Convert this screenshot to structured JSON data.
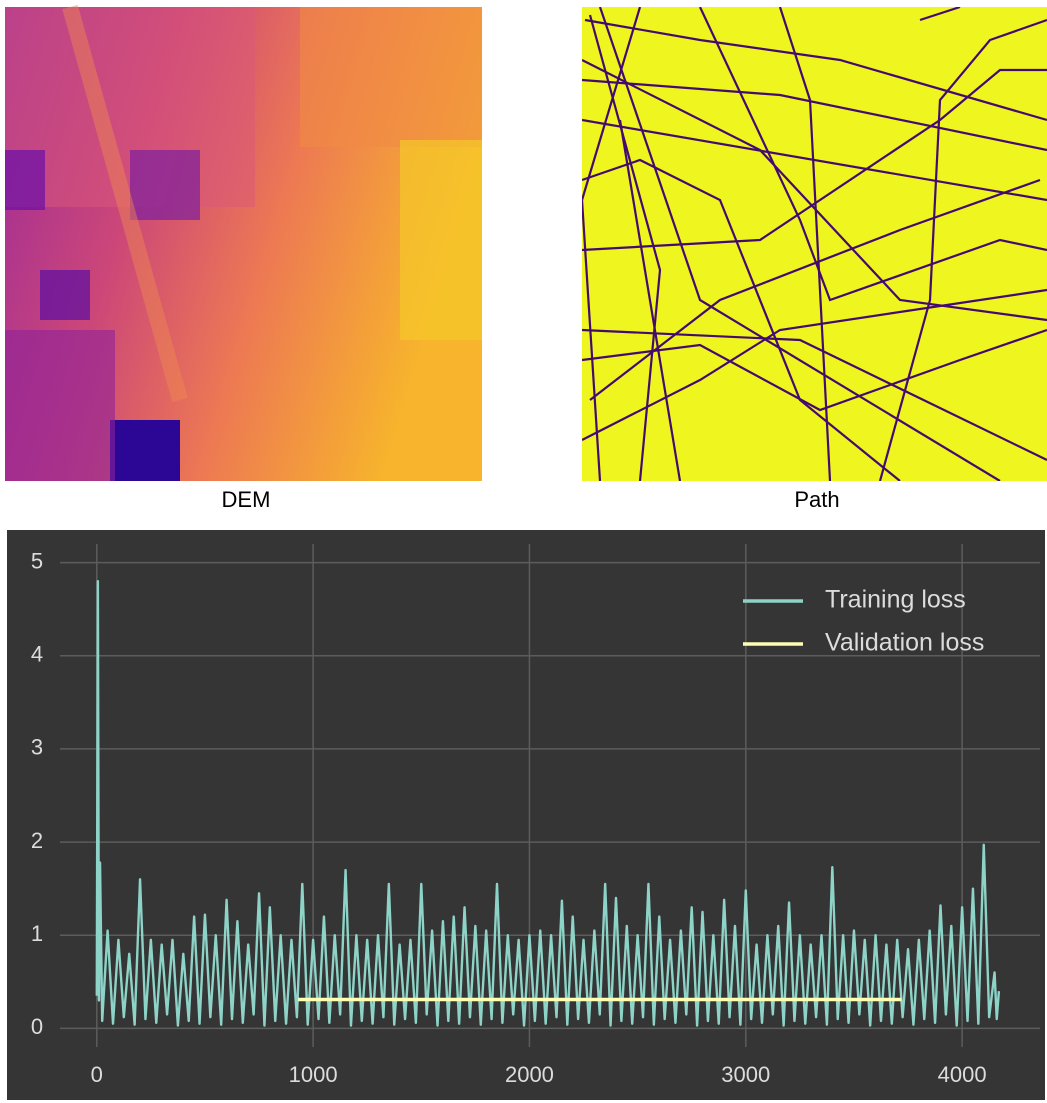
{
  "images": [
    {
      "caption": "DEM"
    },
    {
      "caption": "Path"
    }
  ],
  "chart_data": {
    "type": "line",
    "series": [
      {
        "name": "Training loss",
        "color": "#8dd3c7",
        "x": [
          0,
          5,
          10,
          15,
          25,
          50,
          75,
          100,
          125,
          150,
          175,
          200,
          225,
          250,
          275,
          300,
          325,
          350,
          375,
          400,
          425,
          450,
          475,
          500,
          525,
          550,
          575,
          600,
          625,
          650,
          675,
          700,
          725,
          750,
          775,
          800,
          825,
          850,
          875,
          900,
          925,
          950,
          975,
          1000,
          1025,
          1050,
          1075,
          1100,
          1125,
          1150,
          1175,
          1200,
          1225,
          1250,
          1275,
          1300,
          1325,
          1350,
          1375,
          1400,
          1425,
          1450,
          1475,
          1500,
          1525,
          1550,
          1575,
          1600,
          1625,
          1650,
          1675,
          1700,
          1725,
          1750,
          1775,
          1800,
          1825,
          1850,
          1875,
          1900,
          1925,
          1950,
          1975,
          2000,
          2025,
          2050,
          2075,
          2100,
          2125,
          2150,
          2175,
          2200,
          2225,
          2250,
          2275,
          2300,
          2325,
          2350,
          2375,
          2400,
          2425,
          2450,
          2475,
          2500,
          2525,
          2550,
          2575,
          2600,
          2625,
          2650,
          2675,
          2700,
          2725,
          2750,
          2775,
          2800,
          2825,
          2850,
          2875,
          2900,
          2925,
          2950,
          2975,
          3000,
          3025,
          3050,
          3075,
          3100,
          3125,
          3150,
          3175,
          3200,
          3225,
          3250,
          3275,
          3300,
          3325,
          3350,
          3375,
          3400,
          3425,
          3450,
          3475,
          3500,
          3525,
          3550,
          3575,
          3600,
          3625,
          3650,
          3675,
          3700,
          3725,
          3750,
          3775,
          3800,
          3825,
          3850,
          3875,
          3900,
          3925,
          3950,
          3975,
          4000,
          4025,
          4050,
          4075,
          4100,
          4125,
          4150,
          4160,
          4170
        ],
        "values": [
          0.35,
          4.8,
          0.3,
          1.78,
          0.08,
          1.05,
          0.05,
          0.95,
          0.12,
          0.8,
          0.04,
          1.6,
          0.1,
          0.95,
          0.06,
          0.9,
          0.15,
          0.95,
          0.03,
          0.8,
          0.08,
          1.2,
          0.05,
          1.22,
          0.12,
          1.0,
          0.04,
          1.38,
          0.1,
          1.15,
          0.06,
          0.9,
          0.15,
          1.45,
          0.03,
          1.3,
          0.08,
          1.0,
          0.05,
          0.95,
          0.12,
          1.55,
          0.04,
          0.95,
          0.1,
          1.2,
          0.06,
          1.0,
          0.15,
          1.7,
          0.03,
          1.0,
          0.08,
          0.95,
          0.05,
          1.0,
          0.12,
          1.55,
          0.04,
          0.9,
          0.1,
          0.95,
          0.06,
          1.55,
          0.15,
          1.05,
          0.03,
          1.15,
          0.08,
          1.2,
          0.05,
          1.3,
          0.12,
          1.1,
          0.04,
          1.05,
          0.1,
          1.55,
          0.06,
          1.0,
          0.15,
          0.95,
          0.03,
          1.0,
          0.08,
          1.05,
          0.05,
          1.0,
          0.12,
          1.37,
          0.04,
          1.2,
          0.1,
          0.95,
          0.06,
          1.05,
          0.15,
          1.55,
          0.03,
          1.4,
          0.08,
          1.1,
          0.05,
          1.0,
          0.12,
          1.55,
          0.04,
          1.2,
          0.1,
          0.95,
          0.06,
          1.05,
          0.15,
          1.3,
          0.03,
          1.25,
          0.08,
          1.0,
          0.05,
          1.38,
          0.12,
          1.1,
          0.04,
          1.48,
          0.1,
          0.9,
          0.06,
          1.0,
          0.15,
          1.1,
          0.03,
          1.35,
          0.08,
          1.0,
          0.05,
          0.9,
          0.12,
          1.0,
          0.04,
          1.73,
          0.1,
          1.0,
          0.06,
          1.05,
          0.15,
          0.95,
          0.03,
          1.0,
          0.08,
          0.9,
          0.05,
          0.95,
          0.12,
          0.85,
          0.04,
          0.95,
          0.1,
          1.05,
          0.06,
          1.32,
          0.15,
          1.1,
          0.03,
          1.3,
          0.08,
          1.5,
          0.05,
          1.97,
          0.12,
          0.6,
          0.1,
          0.4
        ]
      },
      {
        "name": "Validation loss",
        "color": "#ffffb3",
        "x": [
          930,
          3720
        ],
        "values": [
          0.31,
          0.31
        ]
      }
    ],
    "xlim": [
      -170,
      4360
    ],
    "xticks": [
      0,
      1000,
      2000,
      3000,
      4000
    ],
    "ylim": [
      -0.2,
      5.2
    ],
    "yticks": [
      0,
      1,
      2,
      3,
      4,
      5
    ],
    "grid": true,
    "legend": "upper right"
  }
}
